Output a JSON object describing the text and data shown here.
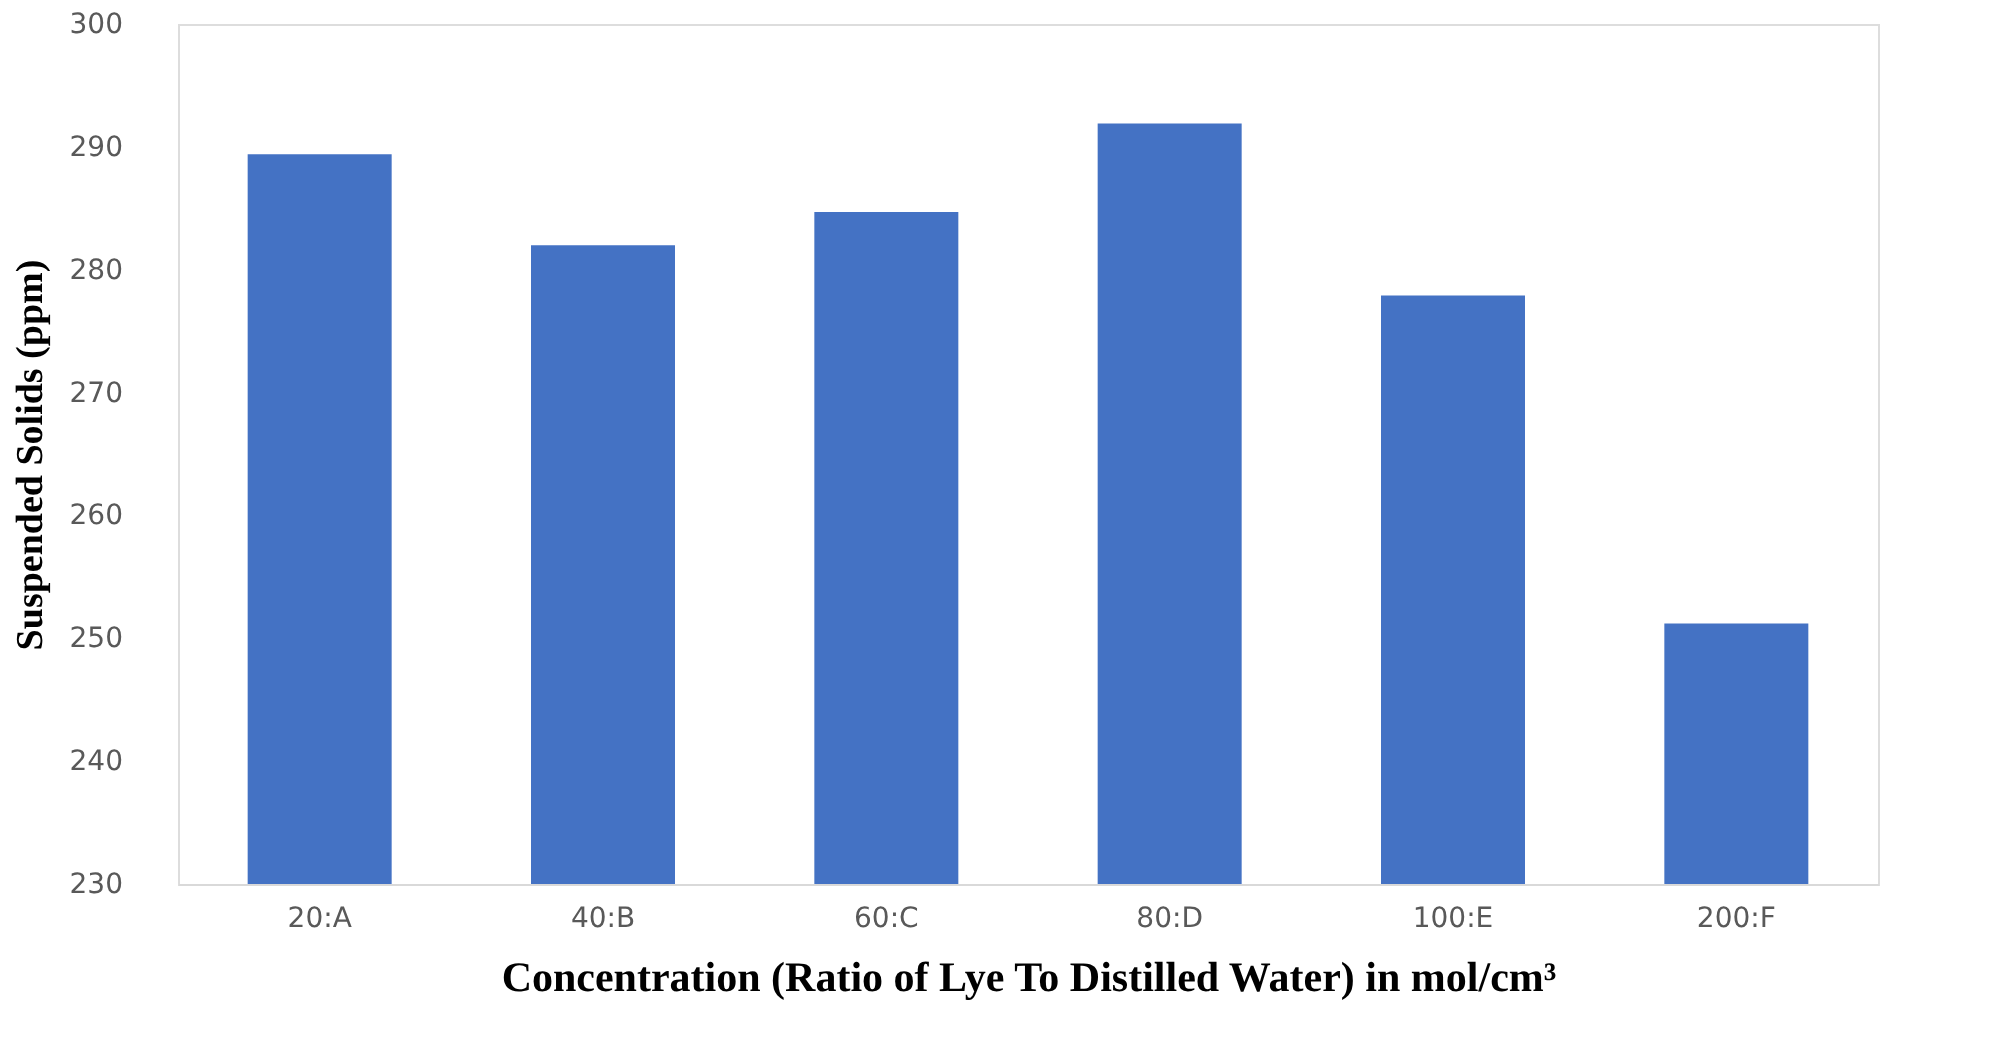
{
  "chart_data": {
    "type": "bar",
    "xlabel": "Concentration (Ratio of Lye To Distilled Water) in mol/cm³",
    "ylabel": "Suspended Solids (ppm)",
    "categories": [
      "20:A",
      "40:B",
      "60:C",
      "80:D",
      "100:E",
      "200:F"
    ],
    "values": [
      289.4,
      282,
      284.7,
      291.9,
      277.9,
      251.2
    ],
    "color": "#4472c4",
    "ylim": [
      230,
      300
    ],
    "yticks": [
      230,
      240,
      250,
      260,
      270,
      280,
      290,
      300
    ],
    "grid": false
  }
}
